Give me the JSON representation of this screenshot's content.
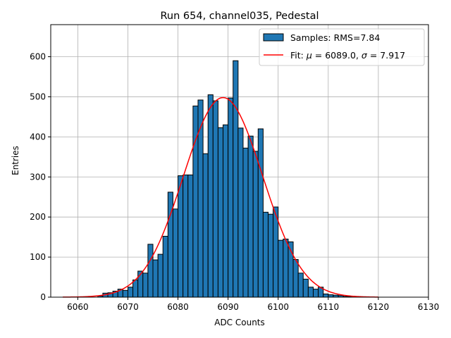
{
  "chart_data": {
    "type": "bar",
    "title": "Run 654, channel035, Pedestal",
    "xlabel": "ADC Counts",
    "ylabel": "Entries",
    "xlim": [
      6054.6,
      6130
    ],
    "ylim": [
      0,
      680
    ],
    "grid": true,
    "xticks": [
      6060,
      6070,
      6080,
      6090,
      6100,
      6110,
      6120,
      6130
    ],
    "yticks": [
      0,
      100,
      200,
      300,
      400,
      500,
      600
    ],
    "bin_width": 1,
    "legend_location": "top-right",
    "series": [
      {
        "name": "Samples: RMS=7.84",
        "kind": "histogram",
        "color": "#1f77b4",
        "edgecolor": "#000000",
        "bins": [
          6064,
          6065,
          6066,
          6067,
          6068,
          6069,
          6070,
          6071,
          6072,
          6073,
          6074,
          6075,
          6076,
          6077,
          6078,
          6079,
          6080,
          6081,
          6082,
          6083,
          6084,
          6085,
          6086,
          6087,
          6088,
          6089,
          6090,
          6091,
          6092,
          6093,
          6094,
          6095,
          6096,
          6097,
          6098,
          6099,
          6100,
          6101,
          6102,
          6103,
          6104,
          6105,
          6106,
          6107,
          6108,
          6109,
          6110,
          6111,
          6112,
          6113,
          6114
        ],
        "values": [
          3,
          10,
          11,
          15,
          20,
          17,
          25,
          43,
          65,
          60,
          132,
          93,
          107,
          152,
          262,
          220,
          303,
          305,
          305,
          477,
          492,
          358,
          505,
          490,
          423,
          430,
          497,
          590,
          422,
          372,
          402,
          364,
          420,
          212,
          207,
          225,
          142,
          145,
          138,
          94,
          60,
          45,
          25,
          20,
          25,
          8,
          6,
          5,
          4,
          2,
          1
        ]
      },
      {
        "name": "Fit: μ = 6089.0, σ = 7.917",
        "kind": "gaussian",
        "color": "#ff0000",
        "mu": 6089.0,
        "sigma": 7.917,
        "amplitude": 498,
        "x_range": [
          6057,
          6120
        ]
      }
    ],
    "legend": {
      "hist_label_prefix": "Samples: RMS=",
      "hist_rms": "7.84",
      "fit_label_prefix": "Fit: ",
      "fit_mu_symbol": "μ",
      "fit_mu_text": " = 6089.0, ",
      "fit_sigma_symbol": "σ",
      "fit_sigma_text": " = 7.917"
    }
  }
}
